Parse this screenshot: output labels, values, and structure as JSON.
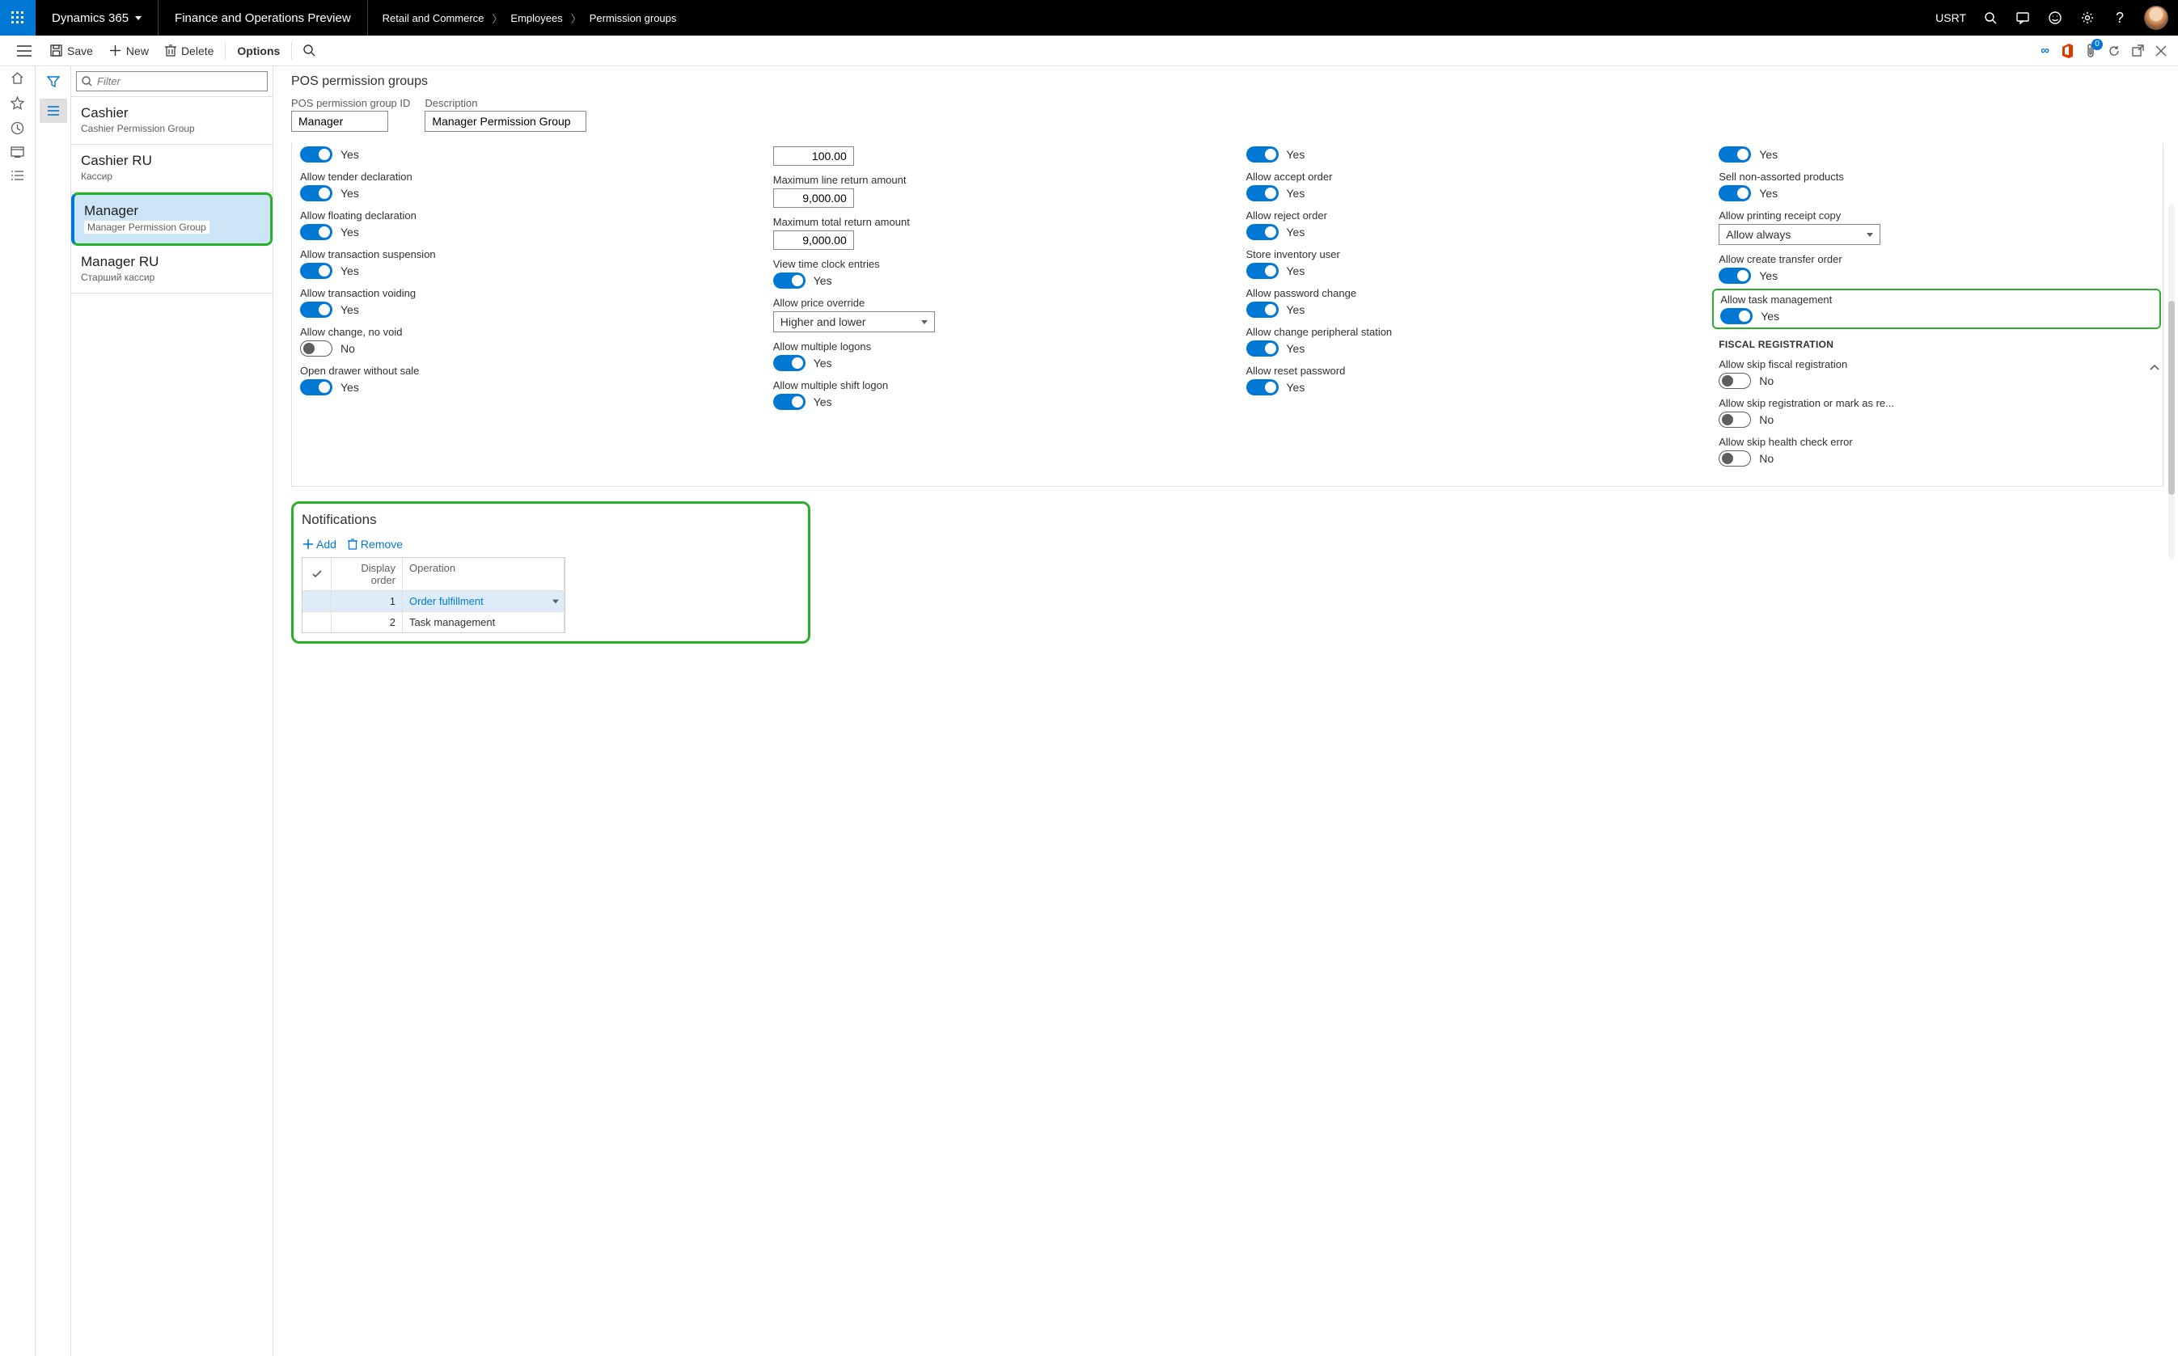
{
  "colors": {
    "accent": "#0078d4",
    "highlight": "#2bb02b",
    "border": "#e1dfdd",
    "text": "#323130",
    "muted": "#605e5c"
  },
  "topbar": {
    "brand": "Dynamics 365",
    "preview": "Finance and Operations Preview",
    "breadcrumb": [
      "Retail and Commerce",
      "Employees",
      "Permission groups"
    ],
    "company": "USRT"
  },
  "actionbar": {
    "save": "Save",
    "new": "New",
    "delete": "Delete",
    "options": "Options",
    "badge_count": "0"
  },
  "filter_placeholder": "Filter",
  "list": [
    {
      "title": "Cashier",
      "sub": "Cashier Permission Group"
    },
    {
      "title": "Cashier RU",
      "sub": "Кассир"
    },
    {
      "title": "Manager",
      "sub": "Manager Permission Group",
      "selected": true,
      "highlighted": true
    },
    {
      "title": "Manager RU",
      "sub": "Старший кассир"
    }
  ],
  "page_title": "POS permission groups",
  "header_fields": {
    "id_label": "POS permission group ID",
    "id_value": "Manager",
    "desc_label": "Description",
    "desc_value": "Manager Permission Group"
  },
  "cols": {
    "c1": [
      {
        "label": "",
        "type": "toggle",
        "on": true,
        "text": "Yes",
        "partial_top": true
      },
      {
        "label": "Allow tender declaration",
        "type": "toggle",
        "on": true,
        "text": "Yes"
      },
      {
        "label": "Allow floating declaration",
        "type": "toggle",
        "on": true,
        "text": "Yes"
      },
      {
        "label": "Allow transaction suspension",
        "type": "toggle",
        "on": true,
        "text": "Yes"
      },
      {
        "label": "Allow transaction voiding",
        "type": "toggle",
        "on": true,
        "text": "Yes"
      },
      {
        "label": "Allow change, no void",
        "type": "toggle",
        "on": false,
        "text": "No"
      },
      {
        "label": "Open drawer without sale",
        "type": "toggle",
        "on": true,
        "text": "Yes"
      }
    ],
    "c2": [
      {
        "label": "",
        "type": "number",
        "value": "100.00",
        "partial_top": true
      },
      {
        "label": "Maximum line return amount",
        "type": "number",
        "value": "9,000.00"
      },
      {
        "label": "Maximum total return amount",
        "type": "number",
        "value": "9,000.00"
      },
      {
        "label": "View time clock entries",
        "type": "toggle",
        "on": true,
        "text": "Yes"
      },
      {
        "label": "Allow price override",
        "type": "select",
        "value": "Higher and lower"
      },
      {
        "label": "Allow multiple logons",
        "type": "toggle",
        "on": true,
        "text": "Yes"
      },
      {
        "label": "Allow multiple shift logon",
        "type": "toggle",
        "on": true,
        "text": "Yes"
      }
    ],
    "c3": [
      {
        "label": "",
        "type": "toggle",
        "on": true,
        "text": "Yes",
        "partial_top": true
      },
      {
        "label": "Allow accept order",
        "type": "toggle",
        "on": true,
        "text": "Yes"
      },
      {
        "label": "Allow reject order",
        "type": "toggle",
        "on": true,
        "text": "Yes"
      },
      {
        "label": "Store inventory user",
        "type": "toggle",
        "on": true,
        "text": "Yes"
      },
      {
        "label": "Allow password change",
        "type": "toggle",
        "on": true,
        "text": "Yes"
      },
      {
        "label": "Allow change peripheral station",
        "type": "toggle",
        "on": true,
        "text": "Yes"
      },
      {
        "label": "Allow reset password",
        "type": "toggle",
        "on": true,
        "text": "Yes"
      }
    ],
    "c4": [
      {
        "label": "",
        "type": "toggle",
        "on": true,
        "text": "Yes",
        "partial_top": true
      },
      {
        "label": "Sell non-assorted products",
        "type": "toggle",
        "on": true,
        "text": "Yes"
      },
      {
        "label": "Allow printing receipt copy",
        "type": "select",
        "value": "Allow always"
      },
      {
        "label": "Allow create transfer order",
        "type": "toggle",
        "on": true,
        "text": "Yes"
      },
      {
        "label": "Allow task management",
        "type": "toggle",
        "on": true,
        "text": "Yes",
        "highlighted": true
      },
      {
        "section": "FISCAL REGISTRATION"
      },
      {
        "label": "Allow skip fiscal registration",
        "type": "toggle",
        "on": false,
        "text": "No"
      },
      {
        "label": "Allow skip registration or mark as re...",
        "type": "toggle",
        "on": false,
        "text": "No"
      },
      {
        "label": "Allow skip health check error",
        "type": "toggle",
        "on": false,
        "text": "No"
      }
    ]
  },
  "notifications": {
    "title": "Notifications",
    "add": "Add",
    "remove": "Remove",
    "columns": {
      "order": "Display order",
      "operation": "Operation"
    },
    "rows": [
      {
        "order": "1",
        "operation": "Order fulfillment",
        "selected": true
      },
      {
        "order": "2",
        "operation": "Task management"
      }
    ]
  }
}
